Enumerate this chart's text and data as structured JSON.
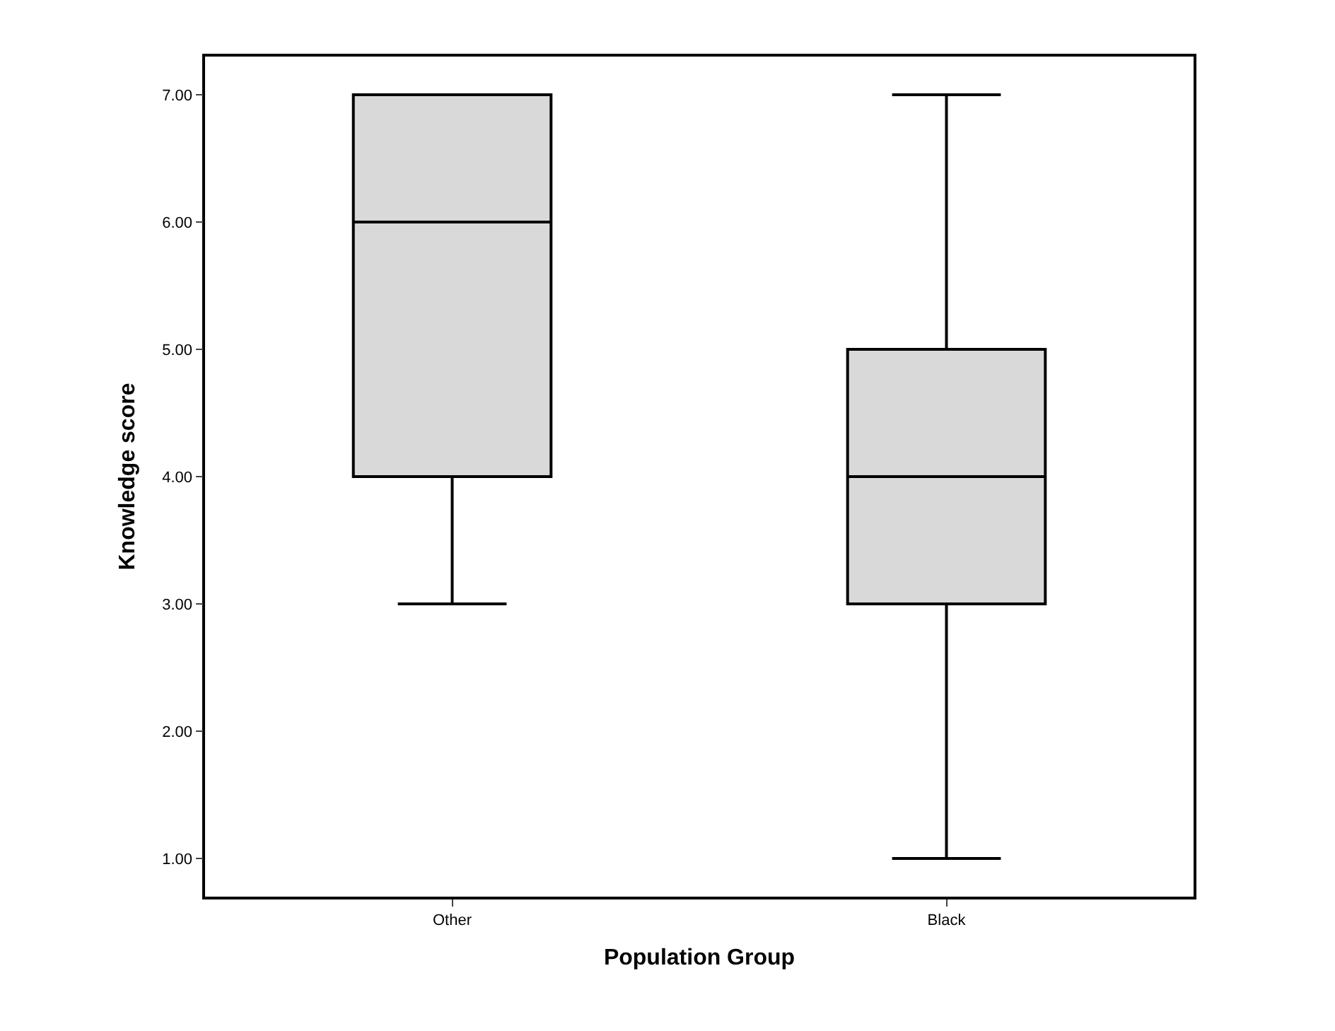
{
  "chart_data": {
    "type": "box",
    "xlabel": "Population Group",
    "ylabel": "Knowledge score",
    "categories": [
      "Other",
      "Black"
    ],
    "boxes": [
      {
        "low": 3,
        "q1": 4,
        "median": 6,
        "q3": 7,
        "high": 7
      },
      {
        "low": 1,
        "q1": 3,
        "median": 4,
        "q3": 5,
        "high": 7
      }
    ],
    "color": "#d9d9d9",
    "ylim": [
      0.7,
      7.3
    ],
    "yticks": [
      {
        "value": 1,
        "label": "1.00"
      },
      {
        "value": 2,
        "label": "2.00"
      },
      {
        "value": 3,
        "label": "3.00"
      },
      {
        "value": 4,
        "label": "4.00"
      },
      {
        "value": 5,
        "label": "5.00"
      },
      {
        "value": 6,
        "label": "6.00"
      },
      {
        "value": 7,
        "label": "7.00"
      }
    ]
  }
}
